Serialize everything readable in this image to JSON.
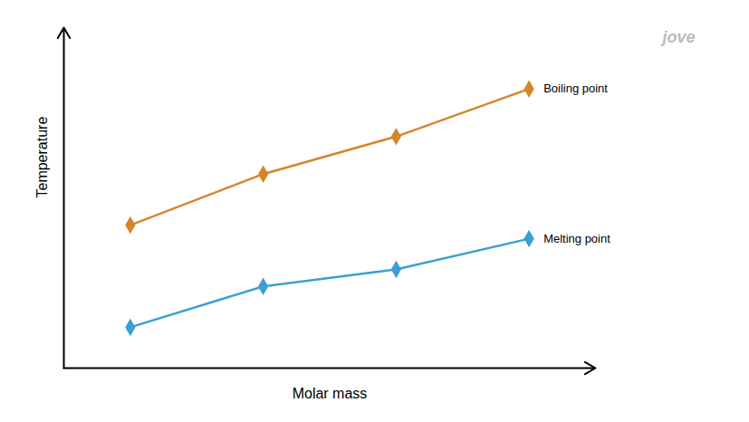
{
  "chart_data": {
    "type": "line",
    "xlabel": "Molar mass",
    "ylabel": "Temperature",
    "x": [
      1,
      2,
      3,
      4
    ],
    "series": [
      {
        "name": "Boiling point",
        "color": "#d4862a",
        "marker": "diamond",
        "values": [
          0.42,
          0.57,
          0.68,
          0.82
        ]
      },
      {
        "name": "Melting point",
        "color": "#3aa0d4",
        "marker": "diamond",
        "values": [
          0.12,
          0.24,
          0.29,
          0.38
        ]
      }
    ],
    "xlim": [
      0.5,
      4.5
    ],
    "ylim": [
      0.0,
      1.0
    ],
    "tick_labels": false,
    "grid": false,
    "annotations": [
      "jove"
    ]
  }
}
